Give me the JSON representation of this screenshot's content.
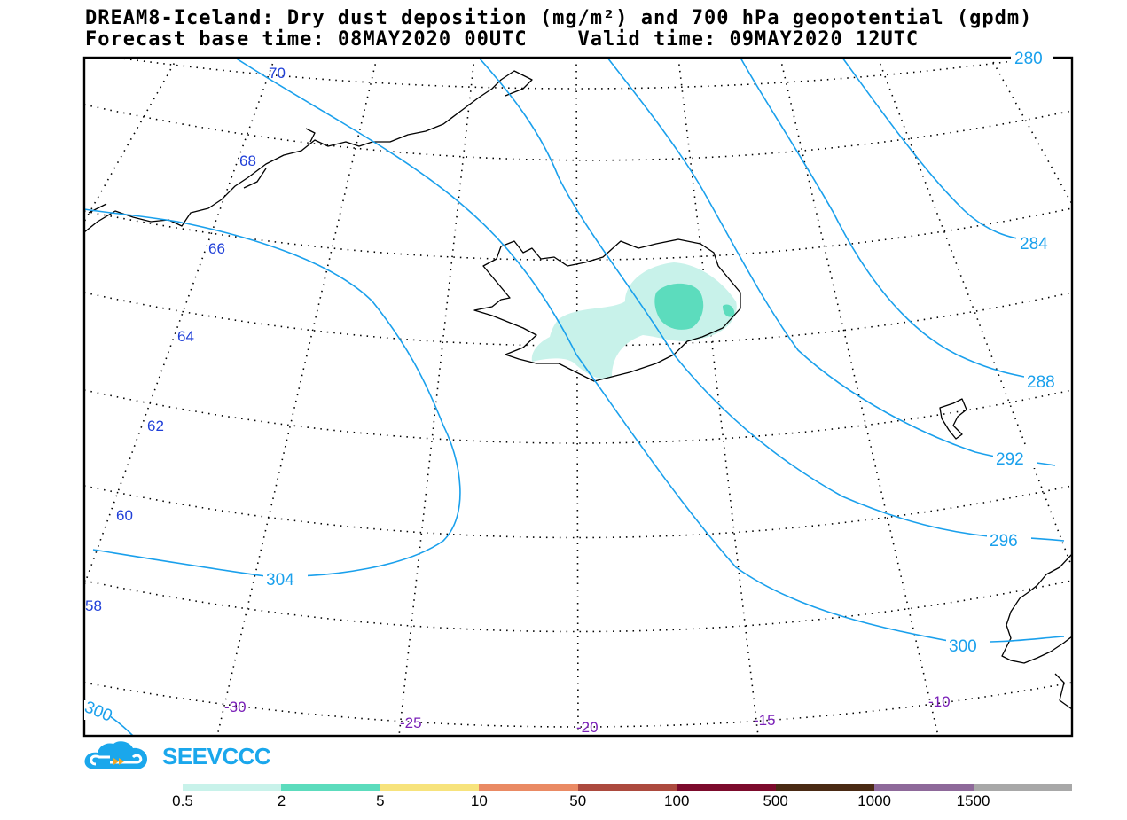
{
  "header": {
    "title_line1": "DREAM8-Iceland: Dry dust deposition (mg/m²) and 700 hPa geopotential (gpdm)",
    "title_line2": "Forecast base time: 08MAY2020 00UTC    Valid time: 09MAY2020 12UTC"
  },
  "map": {
    "lat_labels": [
      "70",
      "68",
      "66",
      "64",
      "62",
      "60",
      "58"
    ],
    "lon_labels": [
      "-30",
      "-25",
      "-20",
      "-15",
      "-10"
    ],
    "contour_labels": [
      "280",
      "284",
      "288",
      "292",
      "296",
      "300",
      "304",
      "300"
    ],
    "colors": {
      "contour": "#1aa0ec",
      "lat_label": "#1f3fd8",
      "lon_label": "#7a1fb8",
      "coast": "#000000",
      "dust_light": "#c8f2ea",
      "dust_medium": "#5cdcbd"
    }
  },
  "logo": {
    "text": "SEEVCCC",
    "icon": "cloud-logo-icon"
  },
  "legend": {
    "labels": [
      "0.5",
      "2",
      "5",
      "10",
      "50",
      "100",
      "500",
      "1000",
      "1500"
    ],
    "colors": [
      "#c8f2ea",
      "#5cdcbd",
      "#f7e37c",
      "#ea8a64",
      "#ac4a3e",
      "#7c0b2c",
      "#4a2a14",
      "#8e699a",
      "#a8a8a8"
    ]
  }
}
